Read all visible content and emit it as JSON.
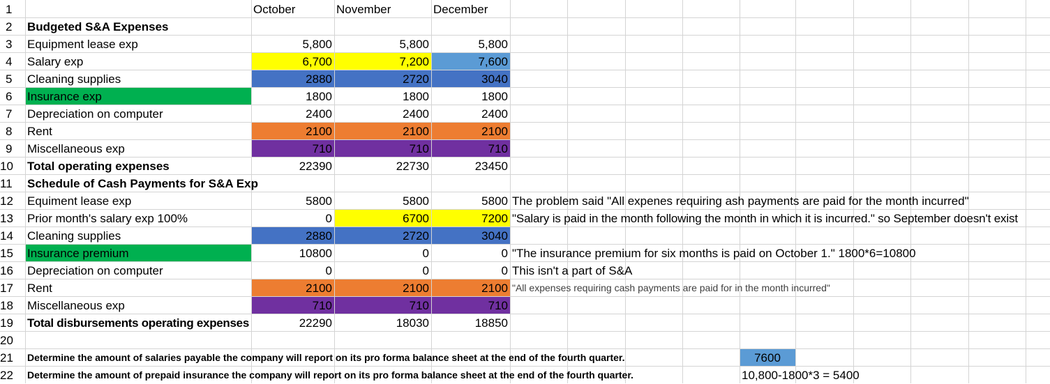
{
  "columns": [
    "October",
    "November",
    "December"
  ],
  "row_numbers": [
    "1",
    "2",
    "3",
    "4",
    "5",
    "6",
    "7",
    "8",
    "9",
    "10",
    "11",
    "12",
    "13",
    "14",
    "15",
    "16",
    "17",
    "18",
    "19",
    "20",
    "21",
    "22"
  ],
  "colors": {
    "yellow": "#ffff00",
    "blue": "#4472c4",
    "lightblue": "#5b9bd5",
    "green": "#00b050",
    "orange": "#ed7d31",
    "purple": "#7030a0",
    "grid": "#d4d4d4"
  },
  "rows": {
    "r2": {
      "label": "Budgeted S&A Expenses"
    },
    "r3": {
      "label": "Equipment lease exp",
      "oct": "5,800",
      "nov": "5,800",
      "dec": "5,800"
    },
    "r4": {
      "label": "Salary exp",
      "oct": "6,700",
      "nov": "7,200",
      "dec": "7,600"
    },
    "r5": {
      "label": "Cleaning supplies",
      "oct": "2880",
      "nov": "2720",
      "dec": "3040"
    },
    "r6": {
      "label": "Insurance exp",
      "oct": "1800",
      "nov": "1800",
      "dec": "1800"
    },
    "r7": {
      "label": "Depreciation on computer",
      "oct": "2400",
      "nov": "2400",
      "dec": "2400"
    },
    "r8": {
      "label": "Rent",
      "oct": "2100",
      "nov": "2100",
      "dec": "2100"
    },
    "r9": {
      "label": "Miscellaneous exp",
      "oct": "710",
      "nov": "710",
      "dec": "710"
    },
    "r10": {
      "label": "Total operating expenses",
      "oct": "22390",
      "nov": "22730",
      "dec": "23450"
    },
    "r11": {
      "label": "Schedule of Cash Payments for S&A Exp"
    },
    "r12": {
      "label": "Equiment lease exp",
      "oct": "5800",
      "nov": "5800",
      "dec": "5800",
      "note": "The problem said \"All expenes requiring ash payments are paid for the month incurred\""
    },
    "r13": {
      "label": "Prior month's salary exp 100%",
      "oct": "0",
      "nov": "6700",
      "dec": "7200",
      "note": "\"Salary is paid in the month following the month in which it is incurred.\" so September doesn't exist"
    },
    "r14": {
      "label": "Cleaning supplies",
      "oct": "2880",
      "nov": "2720",
      "dec": "3040"
    },
    "r15": {
      "label": "Insurance premium",
      "oct": "10800",
      "nov": "0",
      "dec": "0",
      "note": "\"The insurance premium for six months is paid on October 1.\" 1800*6=10800"
    },
    "r16": {
      "label": "Depreciation on computer",
      "oct": "0",
      "nov": "0",
      "dec": "0",
      "note": "This isn't a part of S&A"
    },
    "r17": {
      "label": "Rent",
      "oct": "2100",
      "nov": "2100",
      "dec": "2100",
      "note": "\"All expenses requiring cash payments are paid for in the month incurred\""
    },
    "r18": {
      "label": "Miscellaneous exp",
      "oct": "710",
      "nov": "710",
      "dec": "710"
    },
    "r19": {
      "label": "Total disbursements operating expenses",
      "oct": "22290",
      "nov": "18030",
      "dec": "18850"
    },
    "r21": {
      "label": "Determine the amount of salaries payable the company will report on its pro forma balance sheet at the end of the fourth quarter.",
      "answer": "7600"
    },
    "r22": {
      "label": "Determine the amount of prepaid insurance the company will report on its pro forma balance sheet at the end of the fourth quarter.",
      "answer": "10,800-1800*3 = 5400"
    }
  }
}
